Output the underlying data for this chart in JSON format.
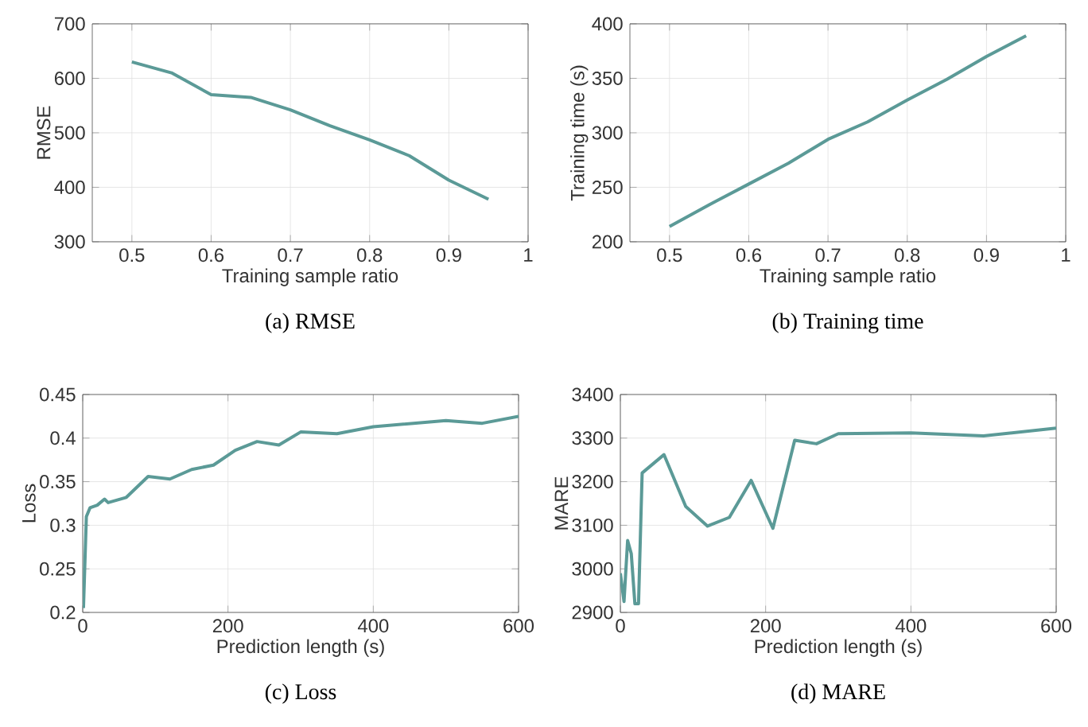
{
  "chart_data": [
    {
      "type": "line",
      "title": "(a) RMSE",
      "xlabel": "Training sample ratio",
      "ylabel": "RMSE",
      "color": "#5b9a97",
      "grid": true,
      "x": [
        0.5,
        0.55,
        0.6,
        0.65,
        0.7,
        0.75,
        0.8,
        0.85,
        0.9,
        0.95
      ],
      "values": [
        630,
        610,
        570,
        565,
        542,
        513,
        487,
        458,
        413,
        378
      ],
      "xlim": [
        0.45,
        1
      ],
      "xticks": [
        0.5,
        0.6,
        0.7,
        0.8,
        0.9,
        1
      ],
      "ylim": [
        300,
        700
      ],
      "yticks": [
        300,
        400,
        500,
        600,
        700
      ]
    },
    {
      "type": "line",
      "title": "(b) Training time",
      "xlabel": "Training sample ratio",
      "ylabel": "Training time (s)",
      "color": "#5b9a97",
      "grid": true,
      "x": [
        0.5,
        0.55,
        0.6,
        0.65,
        0.7,
        0.75,
        0.8,
        0.85,
        0.9,
        0.95
      ],
      "values": [
        214,
        234,
        253,
        272,
        294,
        310,
        330,
        349,
        370,
        389
      ],
      "xlim": [
        0.45,
        1
      ],
      "xticks": [
        0.5,
        0.6,
        0.7,
        0.8,
        0.9,
        1
      ],
      "ylim": [
        200,
        400
      ],
      "yticks": [
        200,
        250,
        300,
        350,
        400
      ]
    },
    {
      "type": "line",
      "title": "(c) Loss",
      "xlabel": "Prediction length (s)",
      "ylabel": "Loss",
      "color": "#5b9a97",
      "grid": true,
      "x": [
        1,
        5,
        10,
        20,
        30,
        35,
        60,
        90,
        120,
        150,
        180,
        210,
        240,
        270,
        300,
        350,
        400,
        500,
        550,
        600
      ],
      "values": [
        0.205,
        0.31,
        0.32,
        0.323,
        0.33,
        0.326,
        0.332,
        0.356,
        0.353,
        0.364,
        0.369,
        0.386,
        0.396,
        0.392,
        0.407,
        0.405,
        0.413,
        0.42,
        0.417,
        0.425
      ],
      "xlim": [
        0,
        600
      ],
      "xticks": [
        0,
        200,
        400,
        600
      ],
      "ylim": [
        0.2,
        0.45
      ],
      "yticks": [
        0.2,
        0.25,
        0.3,
        0.35,
        0.4,
        0.45
      ]
    },
    {
      "type": "line",
      "title": "(d) MARE",
      "xlabel": "Prediction length (s)",
      "ylabel": "MARE",
      "color": "#5b9a97",
      "grid": true,
      "x": [
        0,
        5,
        10,
        15,
        20,
        25,
        30,
        60,
        90,
        120,
        150,
        180,
        210,
        240,
        270,
        300,
        400,
        500,
        600
      ],
      "values": [
        2990,
        2925,
        3065,
        3035,
        2920,
        2920,
        3220,
        3262,
        3143,
        3098,
        3118,
        3203,
        3093,
        3295,
        3287,
        3310,
        3312,
        3305,
        3323
      ],
      "xlim": [
        0,
        600
      ],
      "xticks": [
        0,
        200,
        400,
        600
      ],
      "ylim": [
        2900,
        3400
      ],
      "yticks": [
        2900,
        3000,
        3100,
        3200,
        3300,
        3400
      ]
    }
  ]
}
